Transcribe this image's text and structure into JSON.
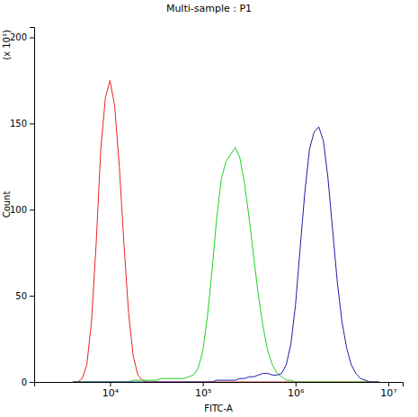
{
  "chart_data": {
    "type": "line",
    "title": "Multi-sample : P1",
    "x_label": "FITC-A",
    "y_label": "Count",
    "annotations": [
      "(x 10¹)"
    ],
    "log": "x",
    "grid": false,
    "xlim": [
      1520,
      14300000
    ],
    "xticks": [
      {
        "value": 10000,
        "label": "10⁴"
      },
      {
        "value": 100000,
        "label": "10⁵"
      },
      {
        "value": 1000000,
        "label": "10⁶"
      },
      {
        "value": 10000000,
        "label": "10⁷"
      }
    ],
    "ylim": [
      0,
      206
    ],
    "yticks": [
      0,
      50,
      100,
      150,
      200
    ],
    "x": [
      3981,
      4467,
      5012,
      5623,
      6310,
      7079,
      7943,
      8913,
      10000,
      11220,
      12589,
      14125,
      15849,
      17783,
      19953,
      22387,
      25119,
      28184,
      31623,
      35481,
      39811,
      44668,
      50119,
      56234,
      63096,
      70795,
      79433,
      89125,
      100000,
      112202,
      125893,
      141254,
      158489,
      177828,
      199526,
      223872,
      251189,
      281838,
      316228,
      354813,
      398107,
      446684,
      501187,
      562341,
      630957,
      707946,
      794328,
      891251,
      1000000,
      1122018,
      1258925,
      1412538,
      1584893,
      1778279,
      1995262,
      2238721,
      2511886,
      2818383,
      3162278,
      3548134,
      3981072,
      4466836,
      5011872,
      5623413,
      6309573,
      7079458,
      7943282
    ],
    "series": [
      {
        "color": "#e8231f",
        "values": [
          0,
          0,
          2,
          10,
          35,
          80,
          135,
          165,
          175,
          160,
          125,
          80,
          40,
          15,
          4,
          1,
          0,
          0,
          0,
          0,
          0,
          0,
          0,
          0,
          0,
          0,
          0,
          0,
          0,
          0,
          0,
          0,
          0,
          0,
          0,
          0,
          0,
          0,
          0,
          0,
          0,
          0,
          0,
          0,
          0,
          0,
          0,
          0,
          0,
          0,
          0,
          0,
          0,
          0,
          0,
          0,
          0,
          0,
          0,
          0,
          0,
          0,
          0,
          0,
          0,
          0,
          0
        ]
      },
      {
        "color": "#1fd11f",
        "values": [
          0,
          0,
          0,
          0,
          0,
          0,
          0,
          0,
          0,
          0,
          0,
          0,
          0,
          1,
          1,
          1,
          1,
          1,
          1,
          2,
          2,
          2,
          2,
          2,
          2,
          3,
          4,
          8,
          18,
          38,
          65,
          95,
          118,
          128,
          132,
          136,
          130,
          115,
          95,
          72,
          50,
          32,
          18,
          10,
          5,
          3,
          1,
          1,
          0,
          0,
          0,
          0,
          0,
          0,
          0,
          0,
          0,
          0,
          0,
          0,
          0,
          0,
          0,
          0,
          0,
          0,
          0
        ]
      },
      {
        "color": "#1f1fa8",
        "values": [
          0,
          0,
          0,
          0,
          0,
          0,
          0,
          0,
          0,
          0,
          0,
          0,
          0,
          0,
          0,
          0,
          0,
          0,
          0,
          0,
          0,
          0,
          0,
          0,
          0,
          0,
          0,
          0,
          0,
          0,
          0,
          1,
          1,
          1,
          1,
          1,
          2,
          2,
          3,
          3,
          4,
          5,
          5,
          4,
          4,
          5,
          10,
          22,
          45,
          78,
          110,
          135,
          145,
          148,
          140,
          118,
          88,
          58,
          35,
          20,
          10,
          5,
          2,
          1,
          0,
          0,
          0
        ]
      }
    ]
  }
}
